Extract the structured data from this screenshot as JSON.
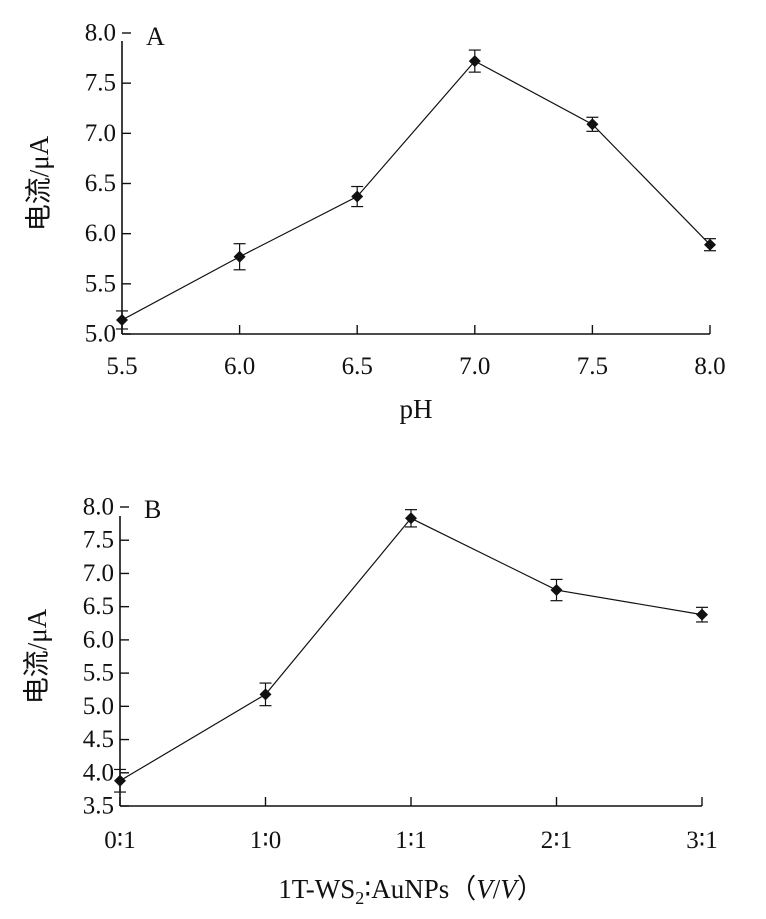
{
  "chart_data": [
    {
      "type": "line",
      "panel_label": "A",
      "x": [
        5.5,
        6.0,
        6.5,
        7.0,
        7.5,
        8.0
      ],
      "x_tick_labels": [
        "5.5",
        "6.0",
        "6.5",
        "7.0",
        "7.5",
        "8.0"
      ],
      "values": [
        5.14,
        5.77,
        6.37,
        7.72,
        7.09,
        5.89
      ],
      "errors": [
        0.09,
        0.13,
        0.1,
        0.11,
        0.07,
        0.06
      ],
      "xlabel": "pH",
      "ylabel": "电流/μA",
      "xlim": [
        5.5,
        8.0
      ],
      "ylim": [
        5.0,
        8.0
      ],
      "y_ticks": [
        "5.0",
        "5.5",
        "6.0",
        "6.5",
        "7.0",
        "7.5",
        "8.0"
      ],
      "grid": false,
      "marker": "diamond",
      "color": "#111111"
    },
    {
      "type": "line",
      "panel_label": "B",
      "categories": [
        "0∶1",
        "1∶0",
        "1∶1",
        "2∶1",
        "3∶1"
      ],
      "values": [
        3.88,
        5.18,
        7.83,
        6.75,
        6.38
      ],
      "errors": [
        0.17,
        0.17,
        0.13,
        0.16,
        0.11
      ],
      "xlabel_parts": {
        "main": "1T-WS",
        "sub": "2",
        "rest": "∶AuNPs（",
        "v1": "V",
        "slash": "/",
        "v2": "V",
        "close": "）"
      },
      "ylabel": "电流/μA",
      "ylim": [
        3.5,
        8.0
      ],
      "y_ticks": [
        "3.5",
        "4.0",
        "4.5",
        "5.0",
        "5.5",
        "6.0",
        "6.5",
        "7.0",
        "7.5",
        "8.0"
      ],
      "grid": false,
      "marker": "diamond",
      "color": "#111111"
    }
  ]
}
